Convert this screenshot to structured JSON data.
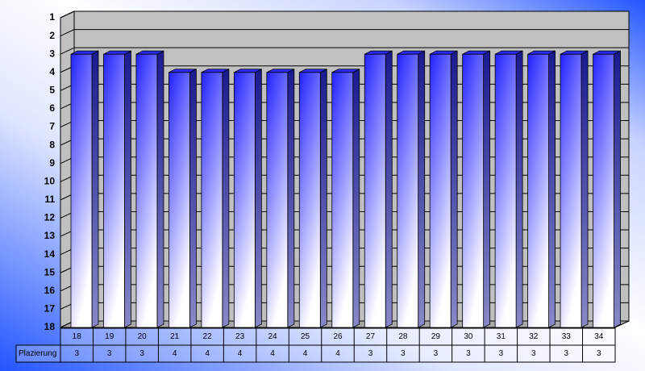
{
  "chart_data": {
    "type": "bar",
    "categories": [
      "18",
      "19",
      "20",
      "21",
      "22",
      "23",
      "24",
      "25",
      "26",
      "27",
      "28",
      "29",
      "30",
      "31",
      "32",
      "33",
      "34"
    ],
    "series": [
      {
        "name": "Plazierung",
        "color": "#2a2aff",
        "values": [
          3,
          3,
          3,
          4,
          4,
          4,
          4,
          4,
          4,
          3,
          3,
          3,
          3,
          3,
          3,
          3,
          3
        ]
      }
    ],
    "ylim": [
      18,
      1
    ],
    "yticks": [
      1,
      2,
      3,
      4,
      5,
      6,
      7,
      8,
      9,
      10,
      11,
      12,
      13,
      14,
      15,
      16,
      17,
      18
    ],
    "grid": true
  }
}
